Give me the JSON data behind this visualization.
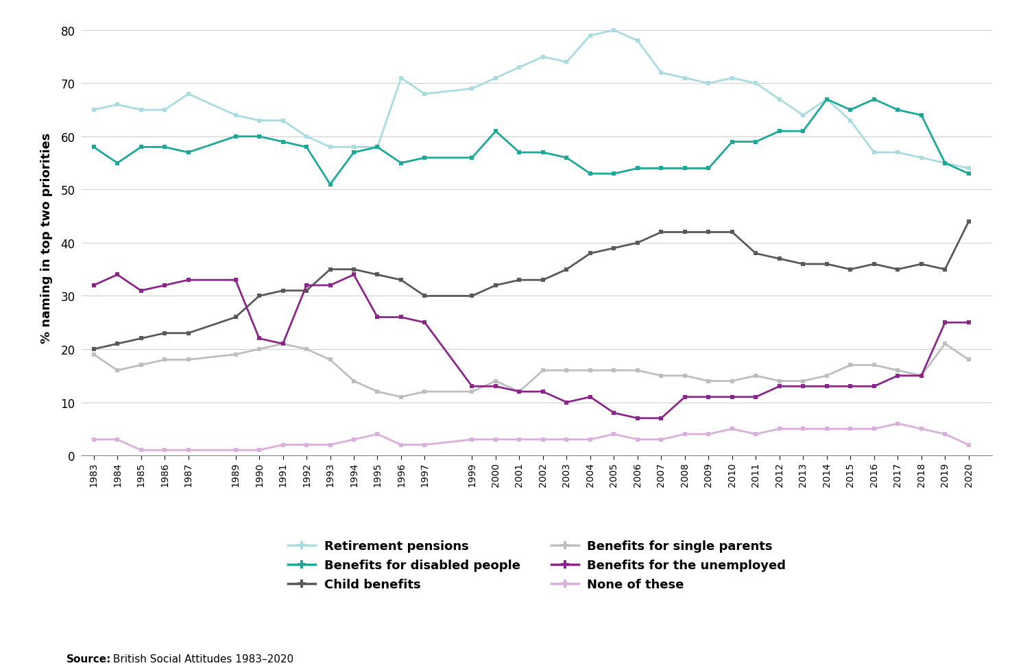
{
  "years": [
    1983,
    1984,
    1985,
    1986,
    1987,
    1989,
    1990,
    1991,
    1992,
    1993,
    1994,
    1995,
    1996,
    1997,
    1999,
    2000,
    2001,
    2002,
    2003,
    2004,
    2005,
    2006,
    2007,
    2008,
    2009,
    2010,
    2011,
    2012,
    2013,
    2014,
    2015,
    2016,
    2017,
    2018,
    2019,
    2020
  ],
  "retirement_pensions": [
    65,
    66,
    65,
    65,
    68,
    64,
    63,
    63,
    60,
    58,
    58,
    58,
    71,
    68,
    69,
    71,
    73,
    75,
    74,
    79,
    80,
    78,
    72,
    71,
    70,
    71,
    70,
    67,
    64,
    67,
    63,
    57,
    57,
    56,
    55,
    54
  ],
  "retirement_pensions_color": "#a8dce0",
  "disabled_benefits": [
    58,
    55,
    58,
    58,
    57,
    60,
    60,
    59,
    58,
    51,
    57,
    58,
    55,
    56,
    56,
    61,
    57,
    57,
    56,
    53,
    53,
    54,
    54,
    54,
    54,
    59,
    59,
    61,
    61,
    67,
    65,
    67,
    65,
    64,
    55,
    53
  ],
  "disabled_benefits_color": "#1ba898",
  "child_benefits": [
    20,
    21,
    22,
    23,
    23,
    26,
    30,
    31,
    31,
    35,
    35,
    34,
    33,
    30,
    30,
    32,
    33,
    33,
    35,
    38,
    39,
    40,
    42,
    42,
    42,
    42,
    38,
    37,
    36,
    36,
    35,
    36,
    35,
    36,
    35,
    44
  ],
  "child_benefits_color": "#595959",
  "single_parents": [
    19,
    16,
    17,
    18,
    18,
    19,
    20,
    21,
    20,
    18,
    14,
    12,
    11,
    12,
    12,
    14,
    12,
    16,
    16,
    16,
    16,
    16,
    15,
    15,
    14,
    14,
    15,
    14,
    14,
    15,
    17,
    17,
    16,
    15,
    21,
    18
  ],
  "single_parents_color": "#bebebe",
  "unemployed": [
    32,
    34,
    31,
    32,
    33,
    33,
    22,
    21,
    32,
    32,
    34,
    26,
    26,
    25,
    13,
    13,
    12,
    12,
    10,
    11,
    8,
    7,
    7,
    11,
    11,
    11,
    11,
    13,
    13,
    13,
    13,
    13,
    15,
    15,
    25,
    25
  ],
  "unemployed_color": "#8b2589",
  "none_of_these": [
    3,
    3,
    1,
    1,
    1,
    1,
    1,
    2,
    2,
    2,
    3,
    4,
    2,
    2,
    3,
    3,
    3,
    3,
    3,
    3,
    4,
    3,
    3,
    4,
    4,
    5,
    4,
    5,
    5,
    5,
    5,
    5,
    6,
    5,
    4,
    2
  ],
  "none_of_these_color": "#dbaedd",
  "ylabel": "% naming in top two priorities",
  "ylim": [
    0,
    82
  ],
  "yticks": [
    0,
    10,
    20,
    30,
    40,
    50,
    60,
    70,
    80
  ],
  "source_bold": "Source:",
  "source_rest": " British Social Attitudes 1983–2020",
  "legend_items_left": [
    [
      "Retirement pensions",
      "#a8dce0"
    ],
    [
      "Child benefits",
      "#595959"
    ],
    [
      "Benefits for the unemployed",
      "#8b2589"
    ]
  ],
  "legend_items_right": [
    [
      "Benefits for disabled people",
      "#1ba898"
    ],
    [
      "Benefits for single parents",
      "#bebebe"
    ],
    [
      "None of these",
      "#dbaedd"
    ]
  ]
}
